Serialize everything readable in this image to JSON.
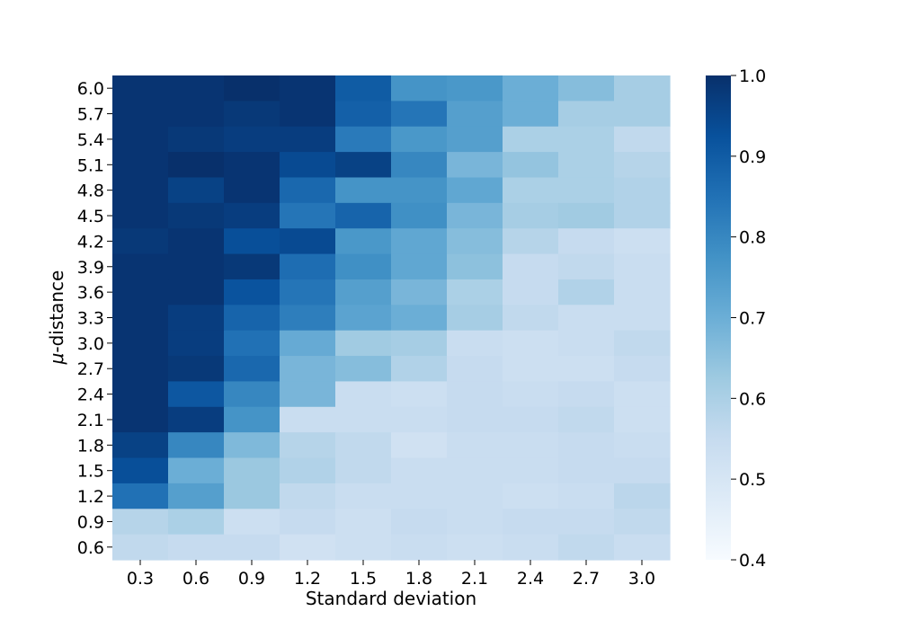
{
  "chart_data": {
    "type": "heatmap",
    "title": "",
    "xlabel": "Standard deviation",
    "ylabel_prefix": "μ",
    "ylabel_suffix": "-distance",
    "x_categories": [
      "0.3",
      "0.6",
      "0.9",
      "1.2",
      "1.5",
      "1.8",
      "2.1",
      "2.4",
      "2.7",
      "3.0"
    ],
    "y_categories": [
      "6.0",
      "5.7",
      "5.4",
      "5.1",
      "4.8",
      "4.5",
      "4.2",
      "3.9",
      "3.6",
      "3.3",
      "3.0",
      "2.7",
      "2.4",
      "2.1",
      "1.8",
      "1.5",
      "1.2",
      "0.9",
      "0.6"
    ],
    "values": [
      [
        0.99,
        0.99,
        1.0,
        0.99,
        0.9,
        0.77,
        0.76,
        0.7,
        0.66,
        0.61
      ],
      [
        0.99,
        0.99,
        0.98,
        0.99,
        0.89,
        0.84,
        0.74,
        0.7,
        0.61,
        0.61
      ],
      [
        0.99,
        0.98,
        0.97,
        0.97,
        0.83,
        0.76,
        0.74,
        0.6,
        0.6,
        0.56
      ],
      [
        0.99,
        1.0,
        0.99,
        0.94,
        0.96,
        0.8,
        0.68,
        0.64,
        0.6,
        0.58
      ],
      [
        0.99,
        0.96,
        0.99,
        0.87,
        0.77,
        0.77,
        0.72,
        0.6,
        0.6,
        0.59
      ],
      [
        0.99,
        0.98,
        0.97,
        0.84,
        0.88,
        0.78,
        0.68,
        0.61,
        0.62,
        0.59
      ],
      [
        0.98,
        0.99,
        0.93,
        0.94,
        0.76,
        0.72,
        0.66,
        0.58,
        0.55,
        0.53
      ],
      [
        0.99,
        0.99,
        0.98,
        0.86,
        0.78,
        0.72,
        0.65,
        0.55,
        0.56,
        0.54
      ],
      [
        0.99,
        0.99,
        0.92,
        0.84,
        0.74,
        0.68,
        0.6,
        0.55,
        0.59,
        0.54
      ],
      [
        0.99,
        0.97,
        0.88,
        0.82,
        0.73,
        0.7,
        0.61,
        0.56,
        0.54,
        0.54
      ],
      [
        0.99,
        0.97,
        0.85,
        0.71,
        0.62,
        0.61,
        0.54,
        0.53,
        0.54,
        0.56
      ],
      [
        0.99,
        0.98,
        0.87,
        0.68,
        0.66,
        0.59,
        0.55,
        0.53,
        0.53,
        0.55
      ],
      [
        0.99,
        0.91,
        0.8,
        0.68,
        0.54,
        0.53,
        0.55,
        0.54,
        0.55,
        0.53
      ],
      [
        0.99,
        0.97,
        0.77,
        0.54,
        0.54,
        0.54,
        0.55,
        0.55,
        0.56,
        0.53
      ],
      [
        0.96,
        0.8,
        0.67,
        0.58,
        0.56,
        0.52,
        0.54,
        0.54,
        0.55,
        0.54
      ],
      [
        0.93,
        0.7,
        0.63,
        0.59,
        0.56,
        0.54,
        0.54,
        0.54,
        0.55,
        0.55
      ],
      [
        0.85,
        0.74,
        0.63,
        0.56,
        0.54,
        0.54,
        0.54,
        0.53,
        0.54,
        0.57
      ],
      [
        0.58,
        0.6,
        0.53,
        0.55,
        0.53,
        0.55,
        0.54,
        0.55,
        0.55,
        0.56
      ],
      [
        0.56,
        0.55,
        0.55,
        0.52,
        0.53,
        0.54,
        0.53,
        0.54,
        0.56,
        0.54
      ]
    ],
    "vmin": 0.4,
    "vmax": 1.0,
    "colorbar_ticks": [
      "0.4",
      "0.5",
      "0.6",
      "0.7",
      "0.8",
      "0.9",
      "1.0"
    ],
    "colormap": "Blues",
    "colormap_stops": [
      "#f7fbff",
      "#deebf7",
      "#c6dbef",
      "#9ecae1",
      "#6baed6",
      "#4292c6",
      "#2171b5",
      "#08519c",
      "#08306b"
    ],
    "legend": "colorbar-right",
    "grid": false
  }
}
